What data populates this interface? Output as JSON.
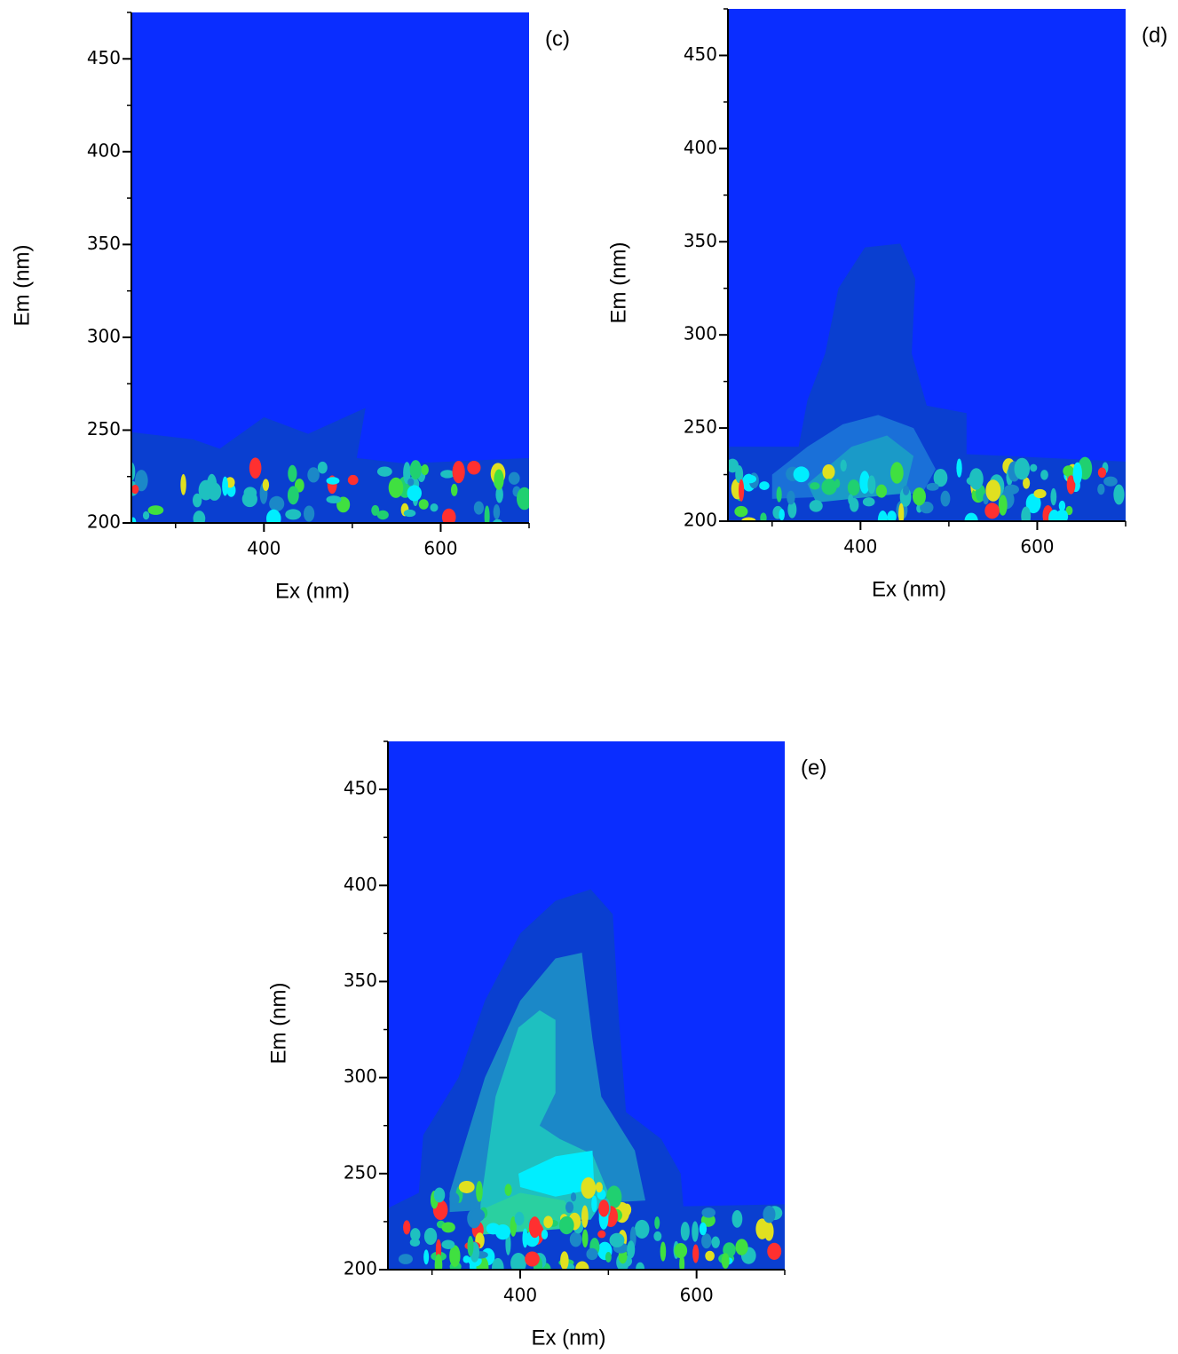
{
  "chart_data": [
    {
      "type": "contour",
      "panel_label": "(c)",
      "xlabel": "Ex (nm)",
      "ylabel": "Em (nm)",
      "xlim": [
        250,
        700
      ],
      "ylim": [
        200,
        475
      ],
      "xticks": [
        400,
        600
      ],
      "xminorticks": [
        300,
        500,
        700
      ],
      "yticks": [
        200,
        250,
        300,
        350,
        400,
        450
      ],
      "yminorticks": [
        225,
        275,
        325,
        375,
        425,
        475
      ],
      "background": "#0a2dff"
    },
    {
      "type": "contour",
      "panel_label": "(d)",
      "xlabel": "Ex (nm)",
      "ylabel": "Em (nm)",
      "xlim": [
        250,
        700
      ],
      "ylim": [
        200,
        475
      ],
      "xticks": [
        400,
        600
      ],
      "xminorticks": [
        300,
        500,
        700
      ],
      "yticks": [
        200,
        250,
        300,
        350,
        400,
        450
      ],
      "yminorticks": [
        225,
        275,
        325,
        375,
        425,
        475
      ],
      "background": "#0a2dff"
    },
    {
      "type": "contour",
      "panel_label": "(e)",
      "xlabel": "Ex (nm)",
      "ylabel": "Em (nm)",
      "xlim": [
        250,
        700
      ],
      "ylim": [
        200,
        475
      ],
      "xticks": [
        400,
        600
      ],
      "xminorticks": [
        300,
        500,
        700
      ],
      "yticks": [
        200,
        250,
        300,
        350,
        400,
        450
      ],
      "yminorticks": [
        225,
        275,
        325,
        375,
        425,
        475
      ],
      "background": "#0a2dff"
    }
  ]
}
